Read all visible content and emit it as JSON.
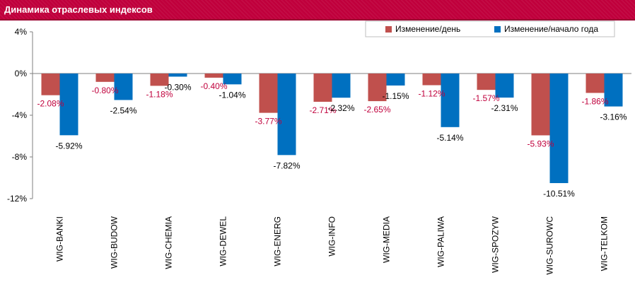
{
  "title": "Динамика отраслевых индексов",
  "colors": {
    "banner": "#c0003c",
    "day": "#c0504d",
    "ytd": "#0070c0",
    "day_label": "#c0003c",
    "ytd_label": "#000000"
  },
  "chart_data": {
    "type": "bar",
    "title": "Динамика отраслевых индексов",
    "categories": [
      "WIG-BANKI",
      "WIG-BUDOW",
      "WIG-CHEMIA",
      "WIG-DEWEL",
      "WIG-ENERG",
      "WIG-INFO",
      "WIG-MEDIA",
      "WIG-PALIWA",
      "WIG-SPOZYW",
      "WIG-SUROWC",
      "WIG-TELKOM"
    ],
    "series": [
      {
        "name": "Изменение/день",
        "values": [
          -2.08,
          -0.8,
          -1.18,
          -0.4,
          -3.77,
          -2.71,
          -2.65,
          -1.12,
          -1.57,
          -5.93,
          -1.86
        ],
        "labels": [
          "-2.08%",
          "-0.80%",
          "-1.18%",
          "-0.40%",
          "-3.77%",
          "-2.71%",
          "-2.65%",
          "-1.12%",
          "-1.57%",
          "-5.93%",
          "-1.86%"
        ]
      },
      {
        "name": "Изменение/начало года",
        "values": [
          -5.92,
          -2.54,
          -0.3,
          -1.04,
          -7.82,
          -2.32,
          -1.15,
          -5.14,
          -2.31,
          -10.51,
          -3.16
        ],
        "labels": [
          "-5.92%",
          "-2.54%",
          "-0.30%",
          "-1.04%",
          "-7.82%",
          "-2.32%",
          "-1.15%",
          "-5.14%",
          "-2.31%",
          "-10.51%",
          "-3.16%"
        ]
      }
    ],
    "ylim": [
      -12,
      4
    ],
    "yticks": [
      4,
      0,
      -4,
      -8,
      -12
    ],
    "ytick_labels": [
      "4%",
      "0%",
      "-4%",
      "-8%",
      "-12%"
    ],
    "xlabel": "",
    "ylabel": "",
    "grid": false,
    "legend_position": "top-right"
  }
}
